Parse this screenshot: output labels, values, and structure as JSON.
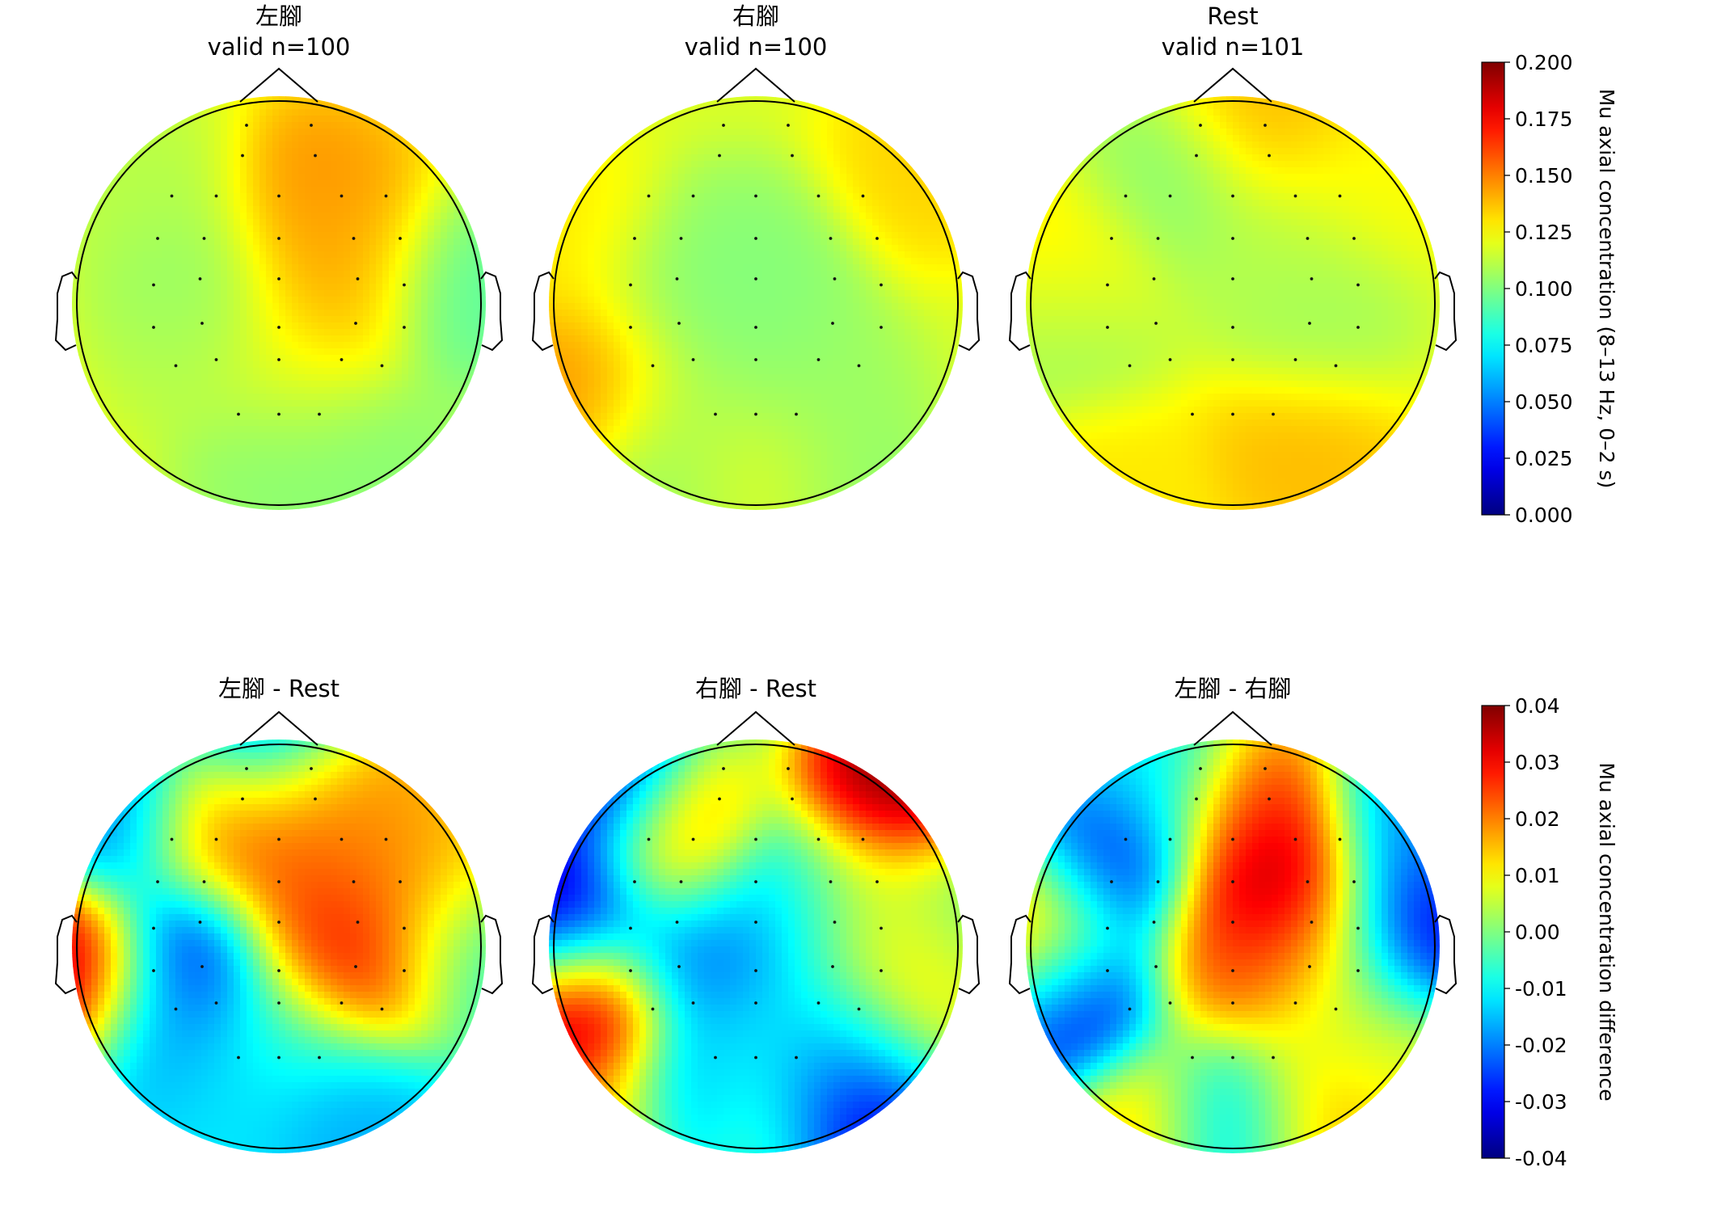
{
  "chart_data": {
    "type": "heatmap",
    "colormap": "jet",
    "panels": [
      {
        "title": "左腳",
        "subtitle": "valid n=100",
        "scale": "concentration",
        "blobs": [
          {
            "x": 0.18,
            "y": 0.48,
            "v": 0.15
          },
          {
            "x": 0.3,
            "y": 0.28,
            "v": 0.14
          },
          {
            "x": 0.25,
            "y": 0.02,
            "v": 0.145
          },
          {
            "x": -0.38,
            "y": 0.12,
            "v": 0.1
          },
          {
            "x": -0.4,
            "y": -0.15,
            "v": 0.11
          },
          {
            "x": 0.85,
            "y": 0.05,
            "v": 0.09
          },
          {
            "x": 0.0,
            "y": -0.78,
            "v": 0.1
          },
          {
            "x": 0.45,
            "y": -0.75,
            "v": 0.1
          },
          {
            "x": -0.6,
            "y": 0.55,
            "v": 0.11
          },
          {
            "x": 0.1,
            "y": -0.35,
            "v": 0.12
          }
        ],
        "base": 0.122
      },
      {
        "title": "右腳",
        "subtitle": "valid n=100",
        "scale": "concentration",
        "blobs": [
          {
            "x": -0.8,
            "y": -0.35,
            "v": 0.15
          },
          {
            "x": -0.9,
            "y": 0.3,
            "v": 0.13
          },
          {
            "x": 0.85,
            "y": 0.7,
            "v": 0.135
          },
          {
            "x": 0.0,
            "y": 0.15,
            "v": 0.1
          },
          {
            "x": -0.4,
            "y": 0.05,
            "v": 0.1
          },
          {
            "x": 0.0,
            "y": -0.28,
            "v": 0.1
          },
          {
            "x": 0.3,
            "y": -0.45,
            "v": 0.105
          },
          {
            "x": -0.35,
            "y": -0.55,
            "v": 0.11
          },
          {
            "x": 0.0,
            "y": -0.85,
            "v": 0.13
          },
          {
            "x": 0.35,
            "y": -0.88,
            "v": 0.1
          },
          {
            "x": -0.3,
            "y": -0.9,
            "v": 0.1
          }
        ],
        "base": 0.118
      },
      {
        "title": "Rest",
        "subtitle": "valid n=101",
        "scale": "concentration",
        "blobs": [
          {
            "x": 0.35,
            "y": -0.72,
            "v": 0.14
          },
          {
            "x": -0.8,
            "y": 0.15,
            "v": 0.135
          },
          {
            "x": 0.2,
            "y": 0.92,
            "v": 0.14
          },
          {
            "x": -0.32,
            "y": 0.55,
            "v": 0.1
          },
          {
            "x": -0.8,
            "y": -0.1,
            "v": 0.1
          },
          {
            "x": 0.42,
            "y": -0.08,
            "v": 0.105
          },
          {
            "x": 0.25,
            "y": 0.25,
            "v": 0.11
          },
          {
            "x": -0.6,
            "y": -0.9,
            "v": 0.13
          },
          {
            "x": 0.65,
            "y": 0.6,
            "v": 0.125
          }
        ],
        "base": 0.122
      },
      {
        "title": "左腳 - Rest",
        "subtitle": "",
        "scale": "difference",
        "blobs": [
          {
            "x": 0.3,
            "y": 0.72,
            "v": 0.032
          },
          {
            "x": 0.0,
            "y": 0.62,
            "v": 0.028
          },
          {
            "x": -0.28,
            "y": 0.58,
            "v": 0.024
          },
          {
            "x": 0.4,
            "y": 0.35,
            "v": 0.026
          },
          {
            "x": 0.4,
            "y": -0.05,
            "v": 0.042
          },
          {
            "x": 0.22,
            "y": 0.15,
            "v": 0.026
          },
          {
            "x": 0.7,
            "y": 0.4,
            "v": 0.018
          },
          {
            "x": 0.38,
            "y": 0.6,
            "v": 0.008
          },
          {
            "x": -1.02,
            "y": -0.13,
            "v": 0.042
          },
          {
            "x": -0.42,
            "y": -0.05,
            "v": -0.032
          },
          {
            "x": -0.78,
            "y": 0.65,
            "v": -0.022
          },
          {
            "x": 0.0,
            "y": 0.98,
            "v": -0.035
          },
          {
            "x": -0.55,
            "y": -0.45,
            "v": -0.018
          },
          {
            "x": 0.3,
            "y": -0.8,
            "v": -0.018
          },
          {
            "x": -0.25,
            "y": -0.75,
            "v": -0.012
          },
          {
            "x": 0.8,
            "y": 0.0,
            "v": -0.008
          },
          {
            "x": 0.05,
            "y": -0.4,
            "v": -0.005
          }
        ],
        "base": -0.006
      },
      {
        "title": "右腳 - Rest",
        "subtitle": "",
        "scale": "difference",
        "blobs": [
          {
            "x": -0.85,
            "y": -0.3,
            "v": 0.045
          },
          {
            "x": 0.72,
            "y": 0.75,
            "v": 0.045
          },
          {
            "x": -0.4,
            "y": 0.5,
            "v": 0.022
          },
          {
            "x": 0.75,
            "y": -0.05,
            "v": 0.018
          },
          {
            "x": 0.45,
            "y": 0.2,
            "v": 0.008
          },
          {
            "x": 0.0,
            "y": -0.85,
            "v": 0.022
          },
          {
            "x": -0.7,
            "y": -0.85,
            "v": 0.02
          },
          {
            "x": -0.95,
            "y": 0.15,
            "v": -0.042
          },
          {
            "x": -0.3,
            "y": -0.05,
            "v": -0.025
          },
          {
            "x": 0.15,
            "y": 0.15,
            "v": -0.02
          },
          {
            "x": 0.3,
            "y": -0.82,
            "v": -0.045
          },
          {
            "x": -0.25,
            "y": -0.8,
            "v": -0.035
          },
          {
            "x": -0.8,
            "y": 0.78,
            "v": -0.035
          },
          {
            "x": 0.0,
            "y": -0.5,
            "v": -0.012
          },
          {
            "x": 0.4,
            "y": -0.4,
            "v": -0.01
          },
          {
            "x": 0.95,
            "y": 0.2,
            "v": -0.005
          }
        ],
        "base": -0.004
      },
      {
        "title": "左腳 - 右腳",
        "subtitle": "",
        "scale": "difference",
        "blobs": [
          {
            "x": 0.25,
            "y": 0.28,
            "v": 0.048
          },
          {
            "x": 0.1,
            "y": 0.6,
            "v": 0.028
          },
          {
            "x": 0.0,
            "y": -0.1,
            "v": 0.026
          },
          {
            "x": 0.35,
            "y": 0.0,
            "v": 0.022
          },
          {
            "x": -0.92,
            "y": 0.07,
            "v": 0.028
          },
          {
            "x": -0.35,
            "y": -0.85,
            "v": 0.022
          },
          {
            "x": 0.3,
            "y": -0.85,
            "v": 0.026
          },
          {
            "x": 0.7,
            "y": -0.6,
            "v": 0.01
          },
          {
            "x": -0.6,
            "y": 0.38,
            "v": -0.035
          },
          {
            "x": -0.75,
            "y": -0.25,
            "v": -0.038
          },
          {
            "x": 0.82,
            "y": 0.08,
            "v": -0.038
          },
          {
            "x": 0.0,
            "y": -0.85,
            "v": -0.036
          },
          {
            "x": 0.85,
            "y": 0.55,
            "v": -0.02
          },
          {
            "x": -0.4,
            "y": 0.8,
            "v": -0.012
          },
          {
            "x": 0.5,
            "y": -0.3,
            "v": 0.004
          }
        ],
        "base": 0.0
      }
    ],
    "colorbars": [
      {
        "label": "Mu axial concentration (8–13 Hz, 0–2 s)",
        "range": [
          0.0,
          0.2
        ],
        "ticks": [
          "0.000",
          "0.025",
          "0.050",
          "0.075",
          "0.100",
          "0.125",
          "0.150",
          "0.175",
          "0.200"
        ]
      },
      {
        "label": "Mu axial concentration difference",
        "range": [
          -0.04,
          0.04
        ],
        "ticks": [
          "-0.04",
          "-0.03",
          "-0.02",
          "-0.01",
          "0.00",
          "0.01",
          "0.02",
          "0.03",
          "0.04"
        ]
      }
    ],
    "sensors": [
      [
        -0.16,
        0.88
      ],
      [
        0.16,
        0.88
      ],
      [
        -0.18,
        0.73
      ],
      [
        0.18,
        0.73
      ],
      [
        -0.53,
        0.53
      ],
      [
        -0.31,
        0.53
      ],
      [
        0.0,
        0.53
      ],
      [
        0.31,
        0.53
      ],
      [
        0.53,
        0.53
      ],
      [
        -0.6,
        0.32
      ],
      [
        -0.37,
        0.32
      ],
      [
        0.0,
        0.32
      ],
      [
        0.37,
        0.32
      ],
      [
        0.6,
        0.32
      ],
      [
        -0.62,
        0.09
      ],
      [
        -0.39,
        0.12
      ],
      [
        0.0,
        0.12
      ],
      [
        0.39,
        0.12
      ],
      [
        0.62,
        0.09
      ],
      [
        -0.62,
        -0.12
      ],
      [
        -0.38,
        -0.1
      ],
      [
        0.0,
        -0.12
      ],
      [
        0.38,
        -0.1
      ],
      [
        0.62,
        -0.12
      ],
      [
        -0.51,
        -0.31
      ],
      [
        -0.31,
        -0.28
      ],
      [
        0.0,
        -0.28
      ],
      [
        0.31,
        -0.28
      ],
      [
        0.51,
        -0.31
      ],
      [
        -0.2,
        -0.55
      ],
      [
        0.0,
        -0.55
      ],
      [
        0.2,
        -0.55
      ]
    ]
  }
}
